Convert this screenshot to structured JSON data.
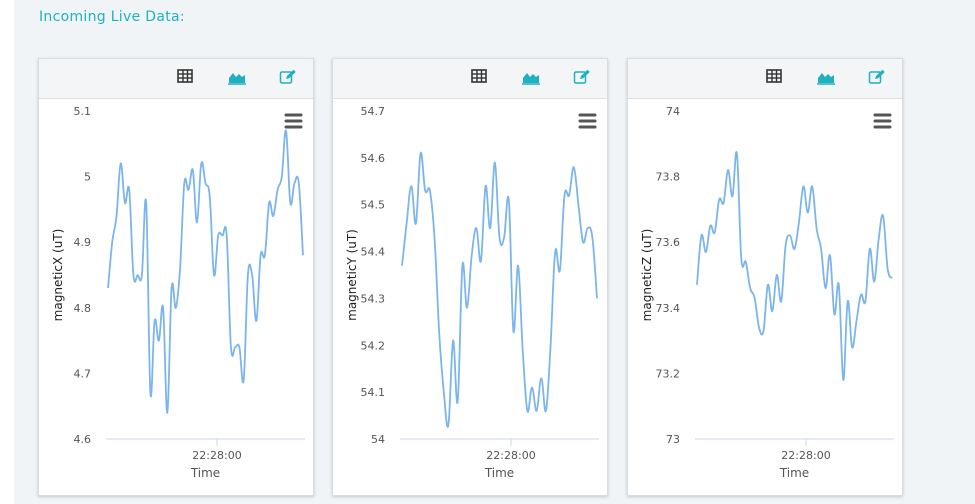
{
  "page": {
    "heading": "Incoming Live Data:"
  },
  "colors": {
    "accent": "#1fb1c2",
    "series": "#7cb5ec",
    "table_icon": "#333333"
  },
  "icons": {
    "table": "table-icon",
    "area_chart": "area-chart-icon",
    "edit": "edit-icon",
    "menu": "hamburger-menu-icon"
  },
  "chart_data": [
    {
      "type": "line",
      "xlabel": "Time",
      "ylabel": "magneticX (uT)",
      "ylim": [
        4.6,
        5.1
      ],
      "yticks": [
        "5.1",
        "5",
        "4.9",
        "4.8",
        "4.7",
        "4.6"
      ],
      "xtick": "22:28:00",
      "series": [
        {
          "values": [
            4.83,
            4.9,
            4.94,
            5.02,
            4.96,
            4.98,
            4.85,
            4.85,
            4.85,
            4.96,
            4.67,
            4.78,
            4.75,
            4.8,
            4.64,
            4.83,
            4.8,
            4.86,
            4.99,
            4.98,
            5.01,
            4.93,
            5.02,
            4.99,
            4.97,
            4.85,
            4.91,
            4.91,
            4.91,
            4.74,
            4.74,
            4.74,
            4.69,
            4.85,
            4.85,
            4.78,
            4.88,
            4.88,
            4.96,
            4.94,
            4.98,
            5.0,
            5.07,
            4.96,
            4.99,
            4.99,
            4.88
          ]
        }
      ]
    },
    {
      "type": "line",
      "xlabel": "Time",
      "ylabel": "magneticY (uT)",
      "ylim": [
        54.0,
        54.7
      ],
      "yticks": [
        "54.7",
        "54.6",
        "54.5",
        "54.4",
        "54.3",
        "54.2",
        "54.1",
        "54"
      ],
      "xtick": "22:28:00",
      "series": [
        {
          "values": [
            54.37,
            54.46,
            54.54,
            54.46,
            54.61,
            54.53,
            54.53,
            54.43,
            54.23,
            54.1,
            54.03,
            54.21,
            54.08,
            54.37,
            54.28,
            54.39,
            54.45,
            54.38,
            54.54,
            54.45,
            54.59,
            54.43,
            54.43,
            54.51,
            54.23,
            54.37,
            54.19,
            54.06,
            54.11,
            54.06,
            54.13,
            54.06,
            54.2,
            54.4,
            54.36,
            54.52,
            54.52,
            54.58,
            54.5,
            54.42,
            54.45,
            54.43,
            54.3
          ]
        }
      ]
    },
    {
      "type": "line",
      "xlabel": "Time",
      "ylabel": "magneticZ (uT)",
      "ylim": [
        73.0,
        74.0
      ],
      "yticks": [
        "74",
        "73.8",
        "73.6",
        "73.4",
        "73.2",
        "73"
      ],
      "xtick": "22:28:00",
      "series": [
        {
          "values": [
            73.47,
            73.62,
            73.57,
            73.65,
            73.63,
            73.73,
            73.72,
            73.82,
            73.74,
            73.87,
            73.55,
            73.54,
            73.46,
            73.43,
            73.34,
            73.33,
            73.47,
            73.39,
            73.5,
            73.42,
            73.59,
            73.62,
            73.58,
            73.66,
            73.77,
            73.69,
            73.77,
            73.64,
            73.58,
            73.46,
            73.56,
            73.38,
            73.47,
            73.18,
            73.42,
            73.28,
            73.36,
            73.44,
            73.42,
            73.58,
            73.48,
            73.61,
            73.68,
            73.52,
            73.49
          ]
        }
      ]
    }
  ]
}
